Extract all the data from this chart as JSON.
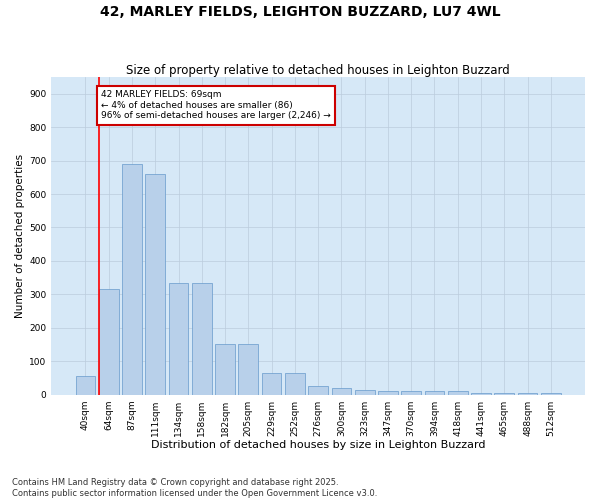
{
  "title": "42, MARLEY FIELDS, LEIGHTON BUZZARD, LU7 4WL",
  "subtitle": "Size of property relative to detached houses in Leighton Buzzard",
  "xlabel": "Distribution of detached houses by size in Leighton Buzzard",
  "ylabel": "Number of detached properties",
  "categories": [
    "40sqm",
    "64sqm",
    "87sqm",
    "111sqm",
    "134sqm",
    "158sqm",
    "182sqm",
    "205sqm",
    "229sqm",
    "252sqm",
    "276sqm",
    "300sqm",
    "323sqm",
    "347sqm",
    "370sqm",
    "394sqm",
    "418sqm",
    "441sqm",
    "465sqm",
    "488sqm",
    "512sqm"
  ],
  "values": [
    55,
    315,
    690,
    660,
    335,
    335,
    150,
    150,
    65,
    65,
    25,
    20,
    15,
    10,
    10,
    10,
    10,
    5,
    5,
    5,
    5
  ],
  "bar_color": "#b8d0ea",
  "bar_edge_color": "#6699cc",
  "bar_width": 0.85,
  "ylim": [
    0,
    950
  ],
  "yticks": [
    0,
    100,
    200,
    300,
    400,
    500,
    600,
    700,
    800,
    900
  ],
  "grid_color": "#bbccdd",
  "bg_color": "#d6e8f7",
  "red_line_index": 1,
  "annotation_text": "42 MARLEY FIELDS: 69sqm\n← 4% of detached houses are smaller (86)\n96% of semi-detached houses are larger (2,246) →",
  "annotation_box_facecolor": "#ffffff",
  "annotation_box_edgecolor": "#cc0000",
  "footer_line1": "Contains HM Land Registry data © Crown copyright and database right 2025.",
  "footer_line2": "Contains public sector information licensed under the Open Government Licence v3.0.",
  "title_fontsize": 10,
  "subtitle_fontsize": 8.5,
  "tick_fontsize": 6.5,
  "xlabel_fontsize": 8,
  "ylabel_fontsize": 7.5,
  "annotation_fontsize": 6.5,
  "footer_fontsize": 6
}
